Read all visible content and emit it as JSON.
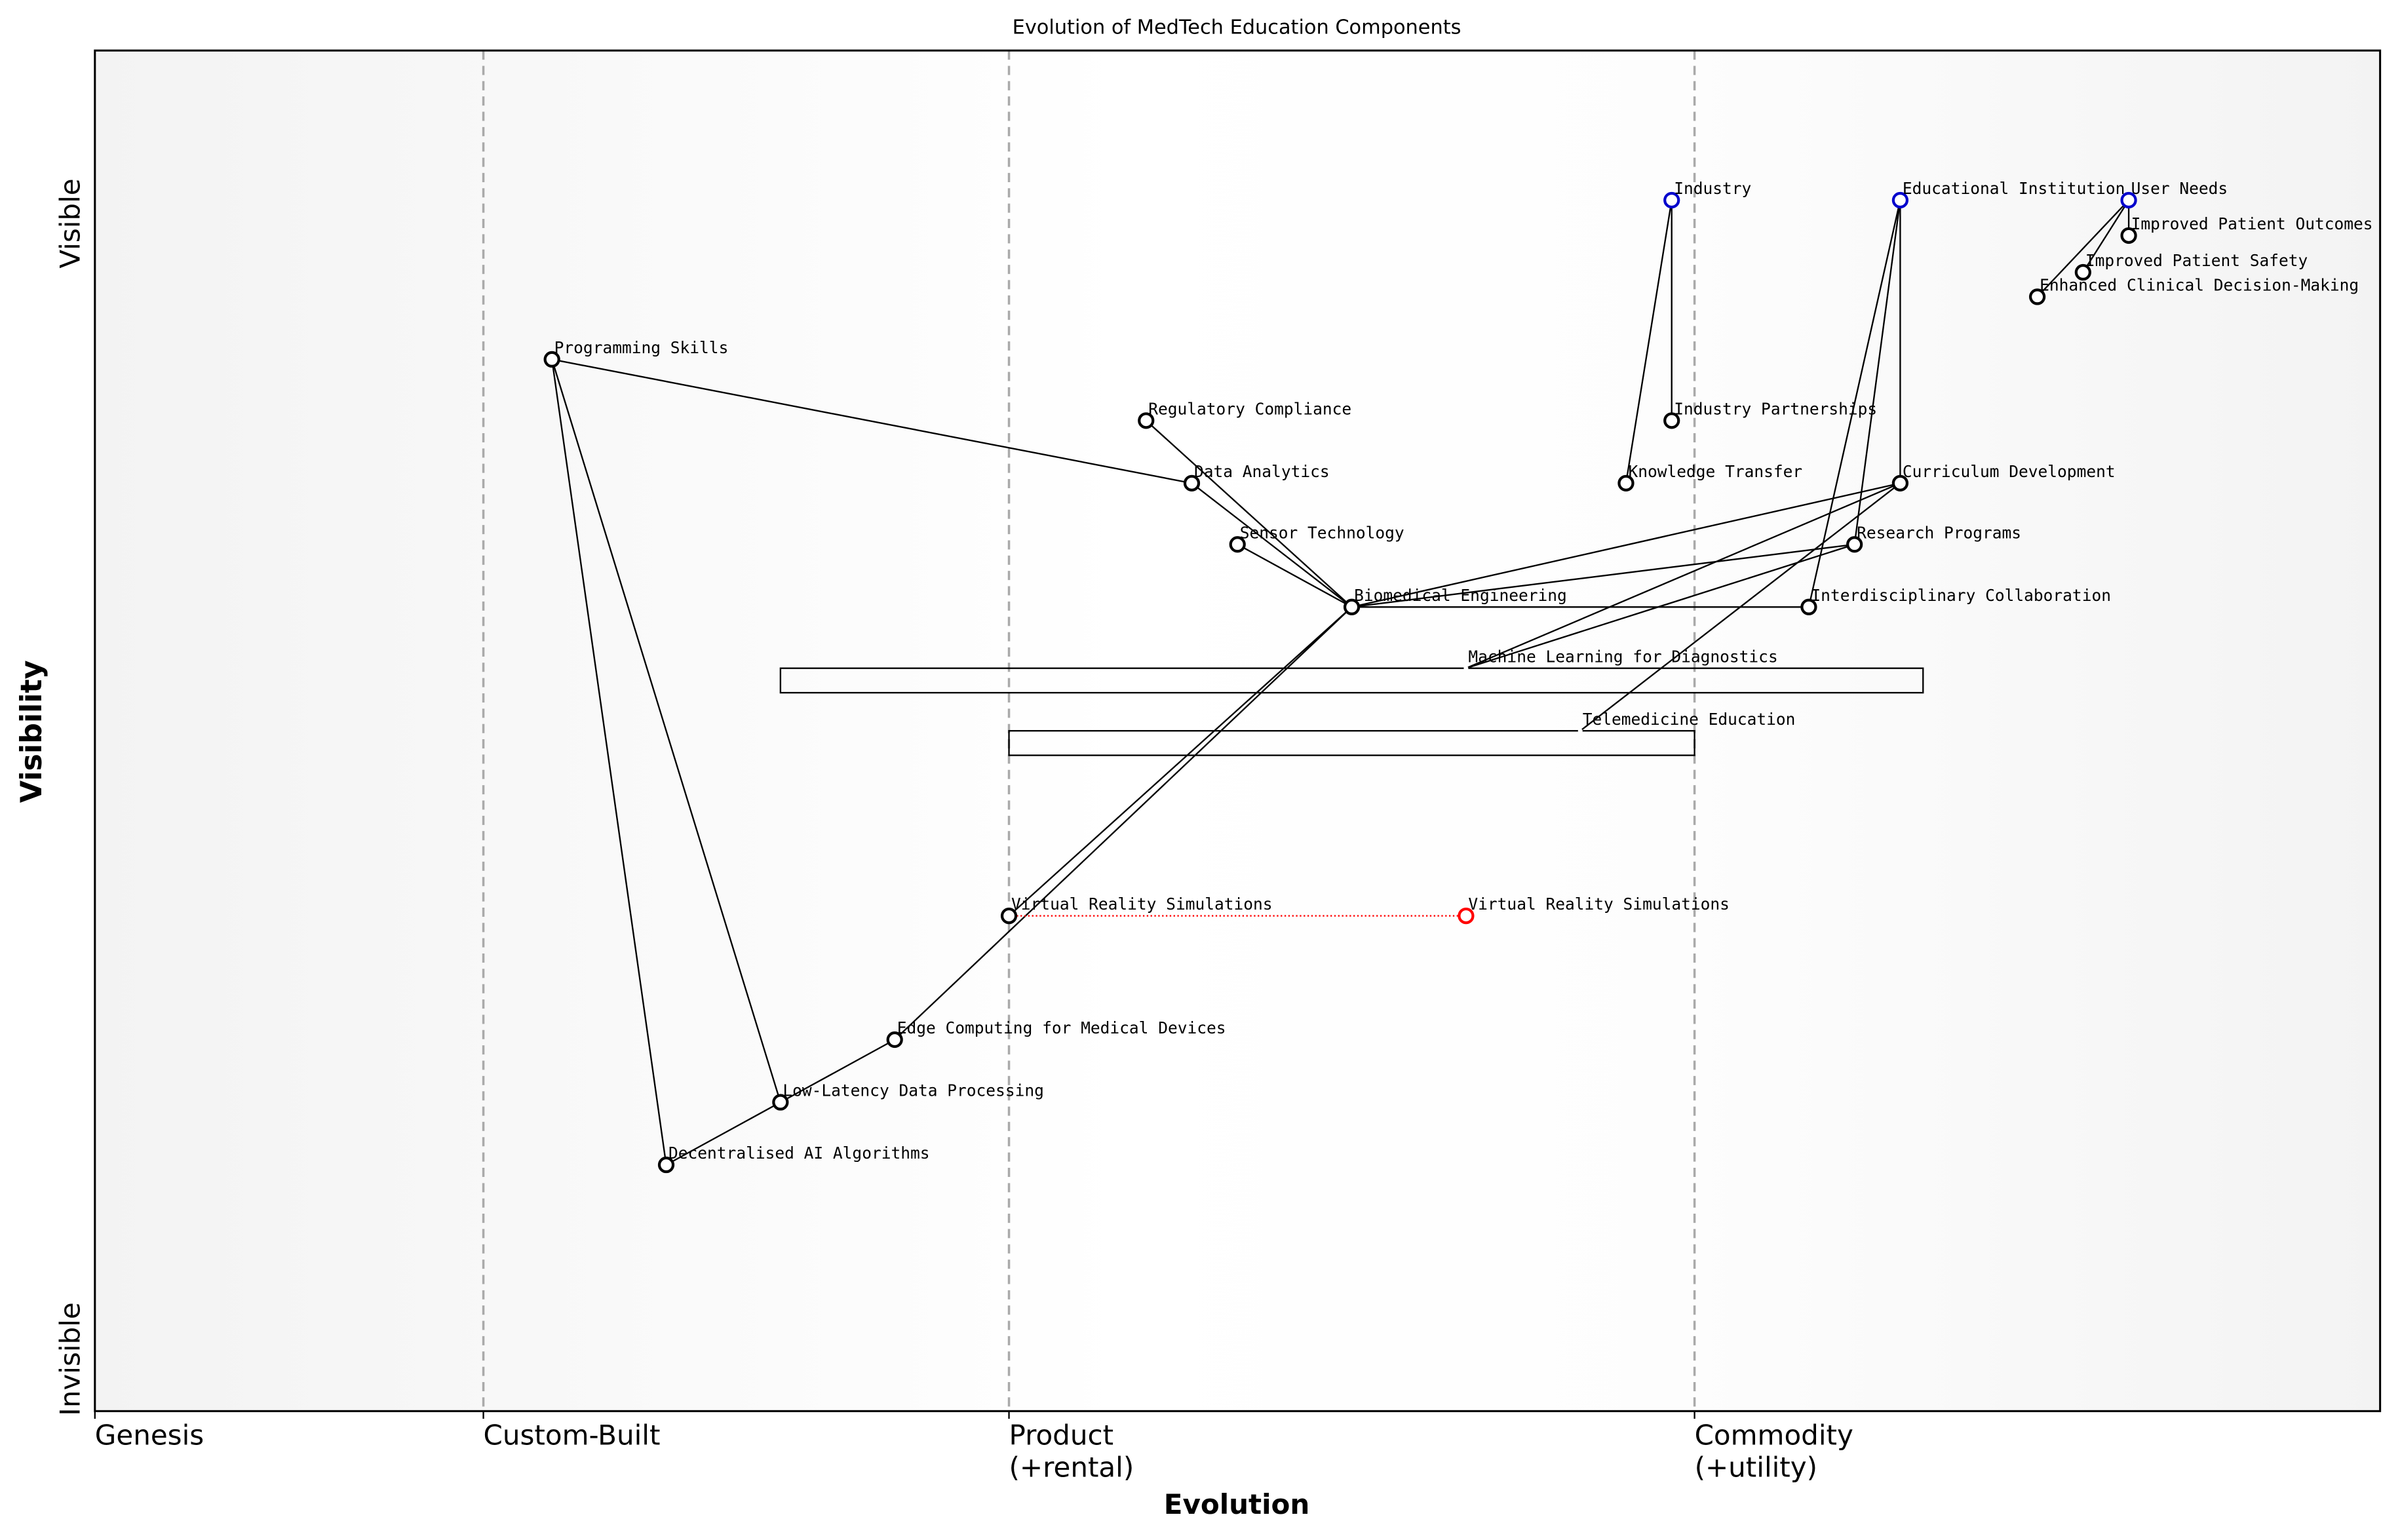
{
  "title": "Evolution of MedTech Education Components",
  "x_axis_label": "Evolution",
  "y_axis_label": "Visibility",
  "y_top_label": "Visible",
  "y_bottom_label": "Invisible",
  "stages": [
    {
      "value": 0,
      "label": [
        "Genesis"
      ]
    },
    {
      "value": 0.17,
      "label": [
        "Custom-Built"
      ]
    },
    {
      "value": 0.4,
      "label": [
        "Product",
        "(+rental)"
      ]
    },
    {
      "value": 0.7,
      "label": [
        "Commodity",
        "(+utility)"
      ]
    }
  ],
  "nodes": [
    {
      "label": "Industry",
      "evolution": 0.69,
      "visibility": 0.89,
      "color": "#0000cc"
    },
    {
      "label": "Educational Institution",
      "evolution": 0.79,
      "visibility": 0.89,
      "color": "#0000cc"
    },
    {
      "label": "User Needs",
      "evolution": 0.89,
      "visibility": 0.89,
      "color": "#0000cc"
    },
    {
      "label": "Improved Patient Outcomes",
      "evolution": 0.89,
      "visibility": 0.864,
      "color": "#000000"
    },
    {
      "label": "Improved Patient Safety",
      "evolution": 0.87,
      "visibility": 0.837,
      "color": "#000000"
    },
    {
      "label": "Enhanced Clinical Decision-Making",
      "evolution": 0.85,
      "visibility": 0.819,
      "color": "#000000"
    },
    {
      "label": "Programming Skills",
      "evolution": 0.2,
      "visibility": 0.773,
      "color": "#000000"
    },
    {
      "label": "Regulatory Compliance",
      "evolution": 0.46,
      "visibility": 0.728,
      "color": "#000000"
    },
    {
      "label": "Industry Partnerships",
      "evolution": 0.69,
      "visibility": 0.728,
      "color": "#000000"
    },
    {
      "label": "Data Analytics",
      "evolution": 0.48,
      "visibility": 0.682,
      "color": "#000000"
    },
    {
      "label": "Knowledge Transfer",
      "evolution": 0.67,
      "visibility": 0.682,
      "color": "#000000"
    },
    {
      "label": "Curriculum Development",
      "evolution": 0.79,
      "visibility": 0.682,
      "color": "#000000"
    },
    {
      "label": "Sensor Technology",
      "evolution": 0.5,
      "visibility": 0.637,
      "color": "#000000"
    },
    {
      "label": "Research Programs",
      "evolution": 0.77,
      "visibility": 0.637,
      "color": "#000000"
    },
    {
      "label": "Biomedical Engineering",
      "evolution": 0.55,
      "visibility": 0.591,
      "color": "#000000"
    },
    {
      "label": "Interdisciplinary Collaboration",
      "evolution": 0.75,
      "visibility": 0.591,
      "color": "#000000"
    },
    {
      "label": "Machine Learning for Diagnostics",
      "evolution": 0.6,
      "visibility": 0.546,
      "color": "#000000",
      "pipeline": [
        0.3,
        0.8
      ]
    },
    {
      "label": "Telemedicine Education",
      "evolution": 0.65,
      "visibility": 0.5,
      "color": "#000000",
      "pipeline": [
        0.4,
        0.7
      ]
    },
    {
      "label": "Virtual Reality Simulations",
      "evolution": 0.4,
      "visibility": 0.364,
      "color": "#000000"
    },
    {
      "label": "Virtual Reality Simulations",
      "evolution": 0.6,
      "visibility": 0.364,
      "color": "#ff0000"
    },
    {
      "label": "Edge Computing for Medical Devices",
      "evolution": 0.35,
      "visibility": 0.273,
      "color": "#000000"
    },
    {
      "label": "Low-Latency Data Processing",
      "evolution": 0.3,
      "visibility": 0.227,
      "color": "#000000"
    },
    {
      "label": "Decentralised AI Algorithms",
      "evolution": 0.25,
      "visibility": 0.181,
      "color": "#000000"
    }
  ],
  "links": [
    [
      0,
      8
    ],
    [
      0,
      10
    ],
    [
      1,
      11
    ],
    [
      1,
      13
    ],
    [
      1,
      15
    ],
    [
      2,
      3
    ],
    [
      2,
      4
    ],
    [
      2,
      5
    ],
    [
      14,
      11
    ],
    [
      14,
      13
    ],
    [
      14,
      15
    ],
    [
      14,
      7
    ],
    [
      14,
      9
    ],
    [
      14,
      12
    ],
    [
      14,
      18
    ],
    [
      14,
      20
    ],
    [
      6,
      9
    ],
    [
      6,
      21
    ],
    [
      6,
      22
    ],
    [
      20,
      21
    ],
    [
      21,
      22
    ],
    [
      11,
      16
    ],
    [
      13,
      16
    ],
    [
      11,
      17
    ]
  ],
  "evolve_links": [
    {
      "from": 18,
      "to": 19,
      "color": "#ff0000"
    }
  ]
}
